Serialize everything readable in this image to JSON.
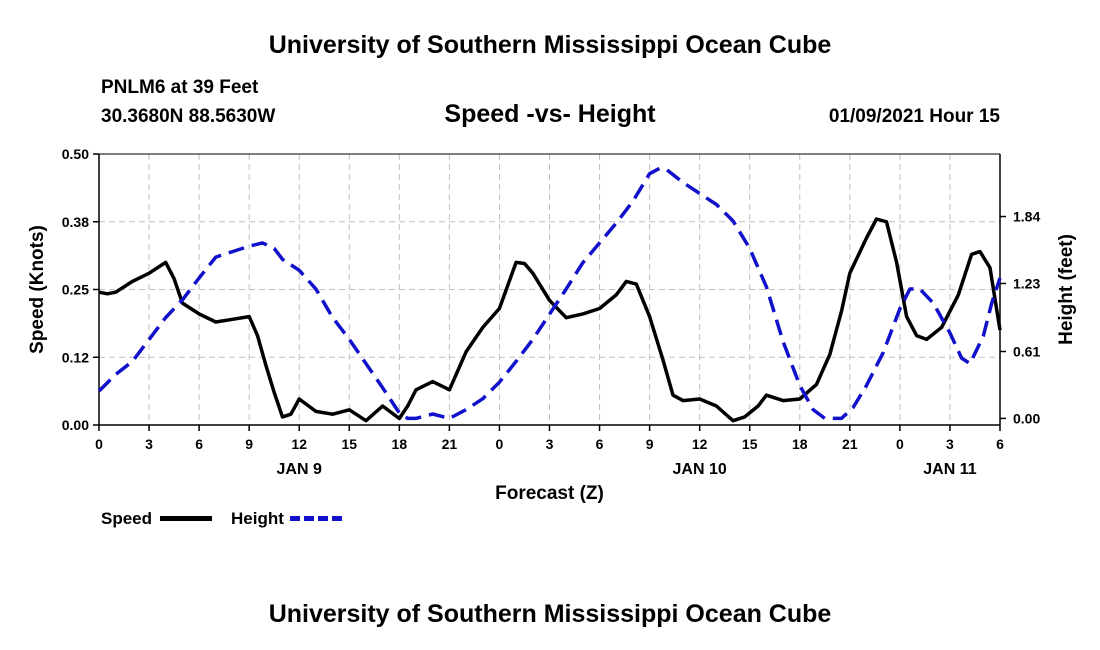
{
  "header": {
    "title": "University of Southern Mississippi Ocean Cube",
    "station_name": "PNLM6 at 39 Feet",
    "station_coords": "30.3680N 88.5630W",
    "subtitle": "Speed -vs- Height",
    "datetime": "01/09/2021 Hour 15"
  },
  "footer": {
    "title": "University of Southern Mississippi Ocean Cube"
  },
  "legend": {
    "speed_label": "Speed",
    "height_label": "Height"
  },
  "colors": {
    "speed": "#000000",
    "height": "#1111cc",
    "grid": "#c0c0c0"
  },
  "chart_data": {
    "type": "line",
    "xlabel": "Forecast (Z)",
    "ylabel_left": "Speed (Knots)",
    "ylabel_right": "Height (feet)",
    "x_range_hours": [
      0,
      54
    ],
    "x_ticks": [
      {
        "h": 0,
        "label": "0"
      },
      {
        "h": 3,
        "label": "3"
      },
      {
        "h": 6,
        "label": "6"
      },
      {
        "h": 9,
        "label": "9"
      },
      {
        "h": 12,
        "label": "12"
      },
      {
        "h": 15,
        "label": "15"
      },
      {
        "h": 18,
        "label": "18"
      },
      {
        "h": 21,
        "label": "21"
      },
      {
        "h": 24,
        "label": "0"
      },
      {
        "h": 27,
        "label": "3"
      },
      {
        "h": 30,
        "label": "6"
      },
      {
        "h": 33,
        "label": "9"
      },
      {
        "h": 36,
        "label": "12"
      },
      {
        "h": 39,
        "label": "15"
      },
      {
        "h": 42,
        "label": "18"
      },
      {
        "h": 45,
        "label": "21"
      },
      {
        "h": 48,
        "label": "0"
      },
      {
        "h": 51,
        "label": "3"
      },
      {
        "h": 54,
        "label": "6"
      }
    ],
    "day_labels": [
      {
        "h": 12,
        "label": "JAN 9"
      },
      {
        "h": 36,
        "label": "JAN 10"
      },
      {
        "h": 51,
        "label": "JAN 11"
      }
    ],
    "ylim_left": [
      0,
      0.5
    ],
    "yticks_left": [
      {
        "v": 0.0,
        "label": "0.00"
      },
      {
        "v": 0.125,
        "label": "0.12"
      },
      {
        "v": 0.25,
        "label": "0.25"
      },
      {
        "v": 0.375,
        "label": "0.38"
      },
      {
        "v": 0.5,
        "label": "0.50"
      }
    ],
    "ylim_right": [
      -0.06,
      2.41
    ],
    "yticks_right": [
      {
        "v": 0.0,
        "label": "0.00"
      },
      {
        "v": 0.61,
        "label": "0.61"
      },
      {
        "v": 1.23,
        "label": "1.23"
      },
      {
        "v": 1.84,
        "label": "1.84"
      }
    ],
    "grid": true,
    "series": [
      {
        "name": "Speed",
        "axis": "left",
        "style": "solid",
        "points": [
          [
            0,
            0.245
          ],
          [
            0.5,
            0.242
          ],
          [
            1,
            0.245
          ],
          [
            2,
            0.265
          ],
          [
            3,
            0.28
          ],
          [
            4,
            0.3
          ],
          [
            4.5,
            0.27
          ],
          [
            5,
            0.225
          ],
          [
            6,
            0.205
          ],
          [
            7,
            0.19
          ],
          [
            8,
            0.195
          ],
          [
            9,
            0.2
          ],
          [
            9.5,
            0.165
          ],
          [
            10,
            0.11
          ],
          [
            10.5,
            0.06
          ],
          [
            11,
            0.015
          ],
          [
            11.5,
            0.02
          ],
          [
            12,
            0.048
          ],
          [
            13,
            0.025
          ],
          [
            14,
            0.02
          ],
          [
            15,
            0.028
          ],
          [
            16,
            0.008
          ],
          [
            17,
            0.035
          ],
          [
            18,
            0.012
          ],
          [
            18.5,
            0.035
          ],
          [
            19,
            0.065
          ],
          [
            20,
            0.08
          ],
          [
            21,
            0.065
          ],
          [
            22,
            0.135
          ],
          [
            23,
            0.18
          ],
          [
            24,
            0.215
          ],
          [
            25,
            0.3
          ],
          [
            25.5,
            0.298
          ],
          [
            26,
            0.28
          ],
          [
            27,
            0.23
          ],
          [
            28,
            0.198
          ],
          [
            29,
            0.205
          ],
          [
            30,
            0.215
          ],
          [
            31,
            0.24
          ],
          [
            31.6,
            0.265
          ],
          [
            32.2,
            0.26
          ],
          [
            33,
            0.2
          ],
          [
            33.8,
            0.12
          ],
          [
            34.4,
            0.055
          ],
          [
            35,
            0.045
          ],
          [
            36,
            0.048
          ],
          [
            37,
            0.035
          ],
          [
            38,
            0.008
          ],
          [
            38.7,
            0.015
          ],
          [
            39.5,
            0.035
          ],
          [
            40,
            0.055
          ],
          [
            41,
            0.045
          ],
          [
            42,
            0.048
          ],
          [
            43,
            0.075
          ],
          [
            43.8,
            0.13
          ],
          [
            44.5,
            0.21
          ],
          [
            45,
            0.28
          ],
          [
            46,
            0.345
          ],
          [
            46.6,
            0.38
          ],
          [
            47.2,
            0.375
          ],
          [
            47.8,
            0.3
          ],
          [
            48.4,
            0.2
          ],
          [
            49,
            0.165
          ],
          [
            49.6,
            0.158
          ],
          [
            50.5,
            0.18
          ],
          [
            51.5,
            0.24
          ],
          [
            52.3,
            0.315
          ],
          [
            52.8,
            0.32
          ],
          [
            53.4,
            0.29
          ],
          [
            54,
            0.175
          ]
        ]
      },
      {
        "name": "Height",
        "axis": "right",
        "style": "dashed",
        "points": [
          [
            0,
            0.25
          ],
          [
            1,
            0.4
          ],
          [
            2,
            0.52
          ],
          [
            3,
            0.72
          ],
          [
            4,
            0.92
          ],
          [
            5,
            1.08
          ],
          [
            6,
            1.28
          ],
          [
            7,
            1.47
          ],
          [
            8,
            1.52
          ],
          [
            9,
            1.57
          ],
          [
            9.8,
            1.6
          ],
          [
            10.5,
            1.55
          ],
          [
            11,
            1.45
          ],
          [
            12,
            1.35
          ],
          [
            13,
            1.18
          ],
          [
            14,
            0.92
          ],
          [
            15,
            0.72
          ],
          [
            16,
            0.5
          ],
          [
            17,
            0.28
          ],
          [
            18,
            0.05
          ],
          [
            18.5,
            0.0
          ],
          [
            19,
            0.0
          ],
          [
            20,
            0.04
          ],
          [
            21,
            0.0
          ],
          [
            22,
            0.08
          ],
          [
            23,
            0.18
          ],
          [
            24,
            0.33
          ],
          [
            25,
            0.52
          ],
          [
            26,
            0.72
          ],
          [
            27,
            0.95
          ],
          [
            28,
            1.18
          ],
          [
            29,
            1.42
          ],
          [
            30,
            1.6
          ],
          [
            31,
            1.78
          ],
          [
            32,
            1.98
          ],
          [
            33,
            2.23
          ],
          [
            33.6,
            2.28
          ],
          [
            34,
            2.27
          ],
          [
            35,
            2.15
          ],
          [
            36,
            2.05
          ],
          [
            37,
            1.95
          ],
          [
            38,
            1.8
          ],
          [
            39,
            1.55
          ],
          [
            40,
            1.2
          ],
          [
            41,
            0.7
          ],
          [
            42,
            0.3
          ],
          [
            42.8,
            0.08
          ],
          [
            43.5,
            0.0
          ],
          [
            44.5,
            0.0
          ],
          [
            45.2,
            0.1
          ],
          [
            46,
            0.3
          ],
          [
            47,
            0.6
          ],
          [
            48,
            1.0
          ],
          [
            48.6,
            1.18
          ],
          [
            49.2,
            1.18
          ],
          [
            50,
            1.05
          ],
          [
            51,
            0.78
          ],
          [
            51.7,
            0.55
          ],
          [
            52.2,
            0.5
          ],
          [
            53,
            0.75
          ],
          [
            53.5,
            1.05
          ],
          [
            54,
            1.28
          ]
        ]
      }
    ]
  }
}
